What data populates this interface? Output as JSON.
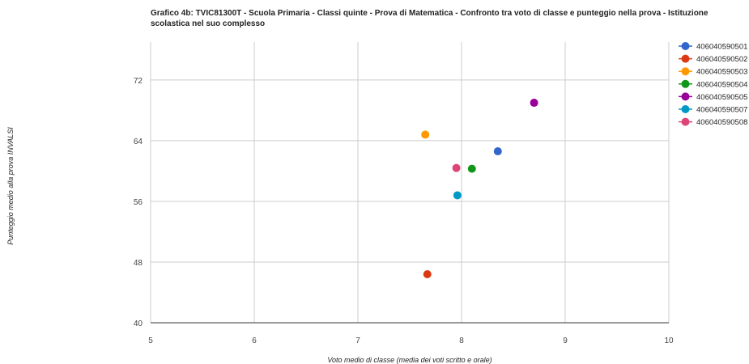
{
  "chart_data": {
    "type": "scatter",
    "title": "Grafico 4b: TVIC81300T - Scuola Primaria - Classi quinte - Prova di Matematica - Confronto tra voto di classe e punteggio nella prova - Istituzione scolastica nel suo complesso",
    "xlabel": "Voto medio di classe (media dei voti scritto e orale)",
    "ylabel": "Punteggio medio alla prova INVALSI",
    "xlim": [
      5,
      10
    ],
    "ylim": [
      40,
      77
    ],
    "x_ticks": [
      5,
      6,
      7,
      8,
      9,
      10
    ],
    "y_ticks": [
      40,
      48,
      56,
      64,
      72
    ],
    "grid": true,
    "legend_position": "right",
    "series": [
      {
        "name": "406040590501",
        "color": "#3366cc",
        "x": 8.35,
        "y": 62.6
      },
      {
        "name": "406040590502",
        "color": "#dc3912",
        "x": 7.67,
        "y": 46.4
      },
      {
        "name": "406040590503",
        "color": "#ff9900",
        "x": 7.65,
        "y": 64.8
      },
      {
        "name": "406040590504",
        "color": "#109618",
        "x": 8.1,
        "y": 60.3
      },
      {
        "name": "406040590505",
        "color": "#990099",
        "x": 8.7,
        "y": 69.0
      },
      {
        "name": "406040590507",
        "color": "#0099c6",
        "x": 7.96,
        "y": 56.8
      },
      {
        "name": "406040590508",
        "color": "#dd4477",
        "x": 7.95,
        "y": 60.4
      }
    ]
  }
}
